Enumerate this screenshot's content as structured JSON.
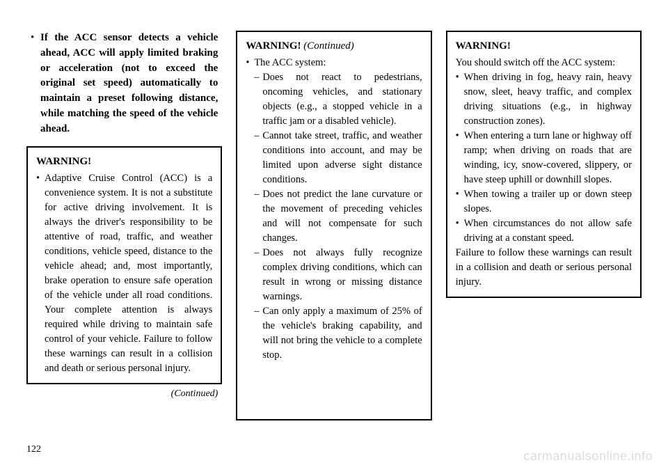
{
  "page_number": "122",
  "watermark": "carmanualsonline.info",
  "column1": {
    "intro_bullet": "If the ACC sensor detects a vehicle ahead, ACC will apply limited braking or acceleration (not to exceed the original set speed) automatically to maintain a preset following distance, while matching the speed of the vehicle ahead.",
    "warning_title": "WARNING!",
    "warning_bullet": "Adaptive Cruise Control (ACC) is a convenience system. It is not a substitute for active driving involvement. It is always the driver's responsibility to be attentive of road, traffic, and weather conditions, vehicle speed, distance to the vehicle ahead; and, most importantly, brake operation to ensure safe operation of the vehicle under all road conditions. Your complete attention is always required while driving to maintain safe control of your vehicle. Failure to follow these warnings can result in a collision and death or serious personal injury.",
    "continued": "(Continued)"
  },
  "column2": {
    "warning_title": "WARNING!",
    "continued_inline": "(Continued)",
    "bullet_lead": "The ACC system:",
    "sub1": "Does not react to pedestrians, oncoming vehicles, and stationary objects (e.g., a stopped vehicle in a traffic jam or a disabled vehicle).",
    "sub2": "Cannot take street, traffic, and weather conditions into account, and may be limited upon adverse sight distance conditions.",
    "sub3": "Does not predict the lane curvature or the movement of preceding vehicles and will not compensate for such changes.",
    "sub4": "Does not always fully recognize complex driving conditions, which can result in wrong or missing distance warnings.",
    "sub5": "Can only apply a maximum of 25% of the vehicle's braking capability, and will not bring the vehicle to a complete stop."
  },
  "column3": {
    "warning_title": "WARNING!",
    "lead": "You should switch off the ACC system:",
    "b1": "When driving in fog, heavy rain, heavy snow, sleet, heavy traffic, and complex driving situations (e.g., in highway construction zones).",
    "b2": "When entering a turn lane or highway off ramp; when driving on roads that are winding, icy, snow-covered, slippery, or have steep uphill or downhill slopes.",
    "b3": "When towing a trailer up or down steep slopes.",
    "b4": "When circumstances do not allow safe driving at a constant speed.",
    "tail": "Failure to follow these warnings can result in a collision and death or serious personal injury."
  }
}
